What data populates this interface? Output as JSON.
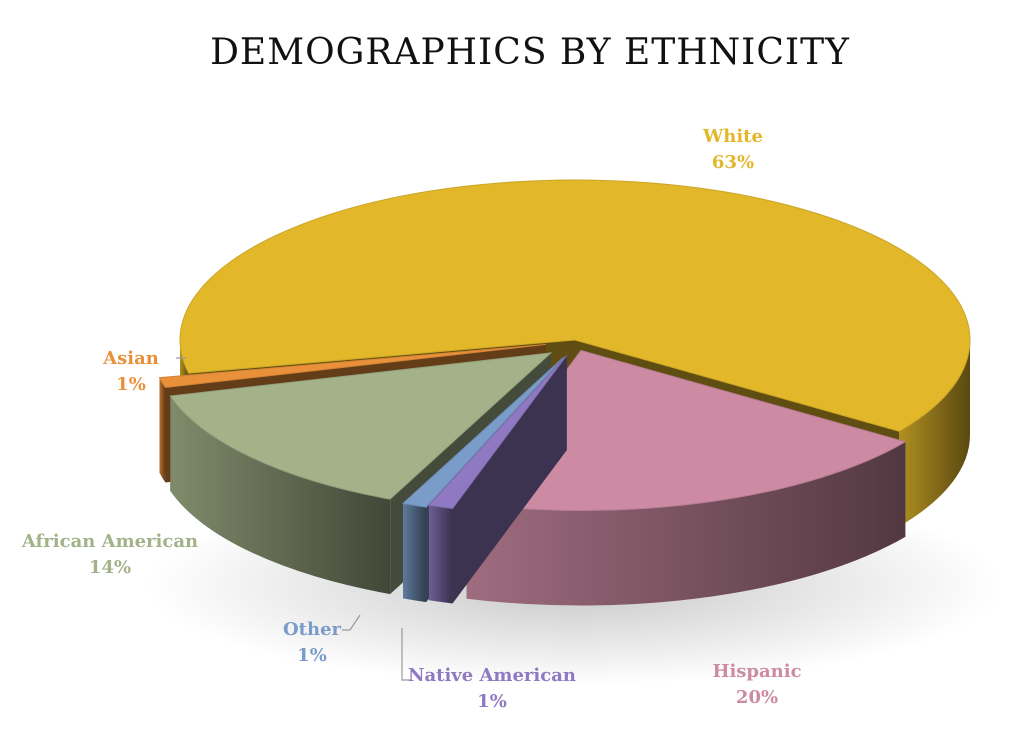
{
  "chart_data": {
    "type": "pie",
    "title": "DEMOGRAPHICS BY ETHNICITY",
    "slices": [
      {
        "name": "White",
        "value": 63,
        "label": "63%",
        "color": "#E2B72A"
      },
      {
        "name": "Hispanic",
        "value": 20,
        "label": "20%",
        "color": "#CC8BA3"
      },
      {
        "name": "Native American",
        "value": 1,
        "label": "1%",
        "color": "#8F79C2"
      },
      {
        "name": "Other",
        "value": 1,
        "label": "1%",
        "color": "#7A9CC9"
      },
      {
        "name": "African American",
        "value": 14,
        "label": "14%",
        "color": "#A4B289"
      },
      {
        "name": "Asian",
        "value": 1,
        "label": "1%",
        "color": "#E9913A"
      }
    ]
  }
}
